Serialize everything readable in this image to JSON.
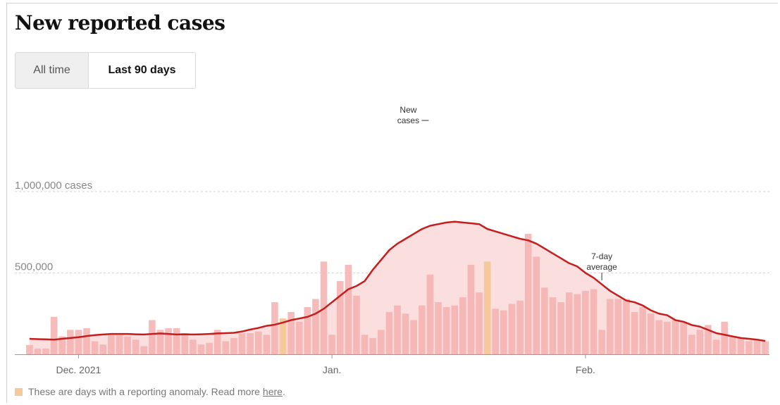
{
  "title": "New reported cases",
  "toggle": {
    "all_time": "All time",
    "last_90": "Last 90 days"
  },
  "footnote": {
    "text": "These are days with a reporting anomaly. Read more",
    "link": "here",
    "end": "."
  },
  "colors": {
    "bar": "#f4b0b0",
    "bar_light": "#f9d0d0",
    "anomaly": "#f6c99a",
    "line": "#c41e1e",
    "area": "#fbdede"
  },
  "chart_data": {
    "type": "bar",
    "title": "New reported cases",
    "ylim": [
      0,
      1500000
    ],
    "yticks": [
      {
        "value": 500000,
        "label": "500,000"
      },
      {
        "value": 1000000,
        "label": "1,000,000 cases"
      }
    ],
    "xticks": [
      {
        "index": 6,
        "label": "Dec. 2021"
      },
      {
        "index": 37,
        "label": "Jan."
      },
      {
        "index": 68,
        "label": "Feb."
      }
    ],
    "series": [
      {
        "name": "New cases",
        "values": [
          57000,
          35000,
          35000,
          230000,
          110000,
          150000,
          150000,
          160000,
          80000,
          60000,
          130000,
          120000,
          110000,
          90000,
          50000,
          210000,
          150000,
          160000,
          160000,
          130000,
          90000,
          60000,
          70000,
          150000,
          80000,
          100000,
          130000,
          130000,
          140000,
          120000,
          320000,
          220000,
          260000,
          200000,
          290000,
          340000,
          570000,
          120000,
          450000,
          550000,
          360000,
          120000,
          100000,
          150000,
          260000,
          300000,
          250000,
          210000,
          300000,
          490000,
          320000,
          290000,
          300000,
          350000,
          550000,
          380000,
          570000,
          280000,
          270000,
          310000,
          330000,
          740000,
          600000,
          410000,
          350000,
          320000,
          380000,
          370000,
          390000,
          400000,
          150000,
          340000,
          340000,
          340000,
          260000,
          290000,
          250000,
          210000,
          200000,
          210000,
          200000,
          120000,
          150000,
          180000,
          90000,
          200000,
          110000,
          100000,
          80000,
          90000,
          80000
        ]
      },
      {
        "name": "7-day average",
        "values": [
          95000,
          93000,
          92000,
          90000,
          95000,
          100000,
          105000,
          112000,
          118000,
          122000,
          125000,
          125000,
          125000,
          123000,
          122000,
          125000,
          128000,
          125000,
          122000,
          123000,
          122000,
          123000,
          125000,
          128000,
          130000,
          132000,
          140000,
          152000,
          162000,
          175000,
          182000,
          195000,
          210000,
          220000,
          230000,
          250000,
          280000,
          320000,
          360000,
          400000,
          420000,
          450000,
          520000,
          580000,
          640000,
          680000,
          710000,
          740000,
          770000,
          790000,
          800000,
          810000,
          815000,
          810000,
          805000,
          800000,
          770000,
          755000,
          740000,
          725000,
          710000,
          700000,
          680000,
          650000,
          620000,
          590000,
          560000,
          540000,
          500000,
          470000,
          430000,
          390000,
          360000,
          330000,
          320000,
          300000,
          270000,
          250000,
          240000,
          210000,
          200000,
          180000,
          170000,
          150000,
          130000,
          120000,
          110000,
          100000,
          95000,
          90000,
          82000
        ]
      }
    ],
    "anomaly_days": [
      31,
      56
    ],
    "annotations": [
      {
        "text": "New",
        "text2": "cases",
        "index": 49
      },
      {
        "text": "7-day",
        "text2": "average",
        "index": 70
      }
    ]
  }
}
